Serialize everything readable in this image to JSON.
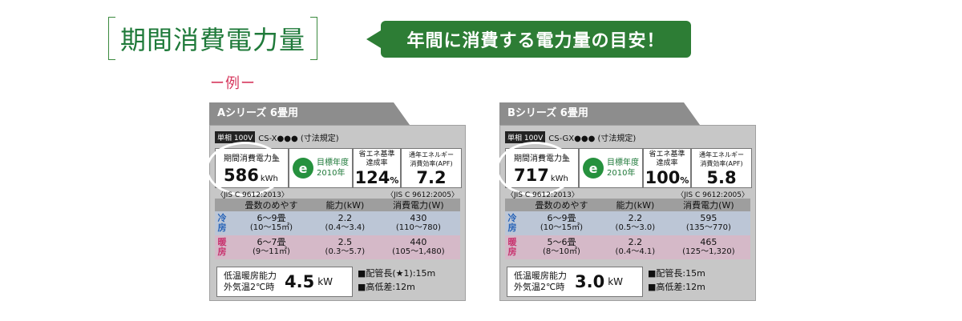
{
  "header": {
    "title": "期間消費電力量",
    "tag": "年間に消費する電力量の目安！",
    "example": "ー例ー"
  },
  "cards": [
    {
      "tab": "Aシリーズ 6畳用",
      "spec_phase": "単相",
      "spec_voltage": "100V",
      "spec_model": "CS-X●●● (寸法規定)",
      "energy_label": "期間消費電力量",
      "energy_value": "586",
      "energy_unit": "kWh",
      "target_year": "目標年度\n2010年",
      "rate_label": "省エネ基準\n達成率",
      "rate_value": "124",
      "rate_unit": "%",
      "apf_label": "通年エネルギー\n消費効率(APF)",
      "apf_value": "7.2",
      "jis_left": "〈JIS C 9612:2013〉",
      "jis_right": "〈JIS C 9612:2005〉",
      "headers": [
        "畳数のめやす",
        "能力(kW)",
        "消費電力(W)"
      ],
      "cool": {
        "mode": "冷房",
        "tatami": "6〜9畳",
        "tatami_sub": "(10〜15㎡)",
        "capacity": "2.2",
        "capacity_sub": "(0.4〜3.4)",
        "power": "430",
        "power_sub": "(110〜780)"
      },
      "heat": {
        "mode": "暖房",
        "tatami": "6〜7畳",
        "tatami_sub": "(9〜11㎡)",
        "capacity": "2.5",
        "capacity_sub": "(0.3〜5.7)",
        "power": "440",
        "power_sub": "(105〜1,480)"
      },
      "low_label": "低温暖房能力\n外気温2℃時",
      "low_value": "4.5",
      "low_unit": "kW",
      "pipe1": "■配管長(★1):15m",
      "pipe2": "■高低差:12m"
    },
    {
      "tab": "Bシリーズ 6畳用",
      "spec_phase": "単相",
      "spec_voltage": "100V",
      "spec_model": "CS-GX●●● (寸法規定)",
      "energy_label": "期間消費電力量",
      "energy_value": "717",
      "energy_unit": "kWh",
      "target_year": "目標年度\n2010年",
      "rate_label": "省エネ基準\n達成率",
      "rate_value": "100",
      "rate_unit": "%",
      "apf_label": "通年エネルギー\n消費効率(APF)",
      "apf_value": "5.8",
      "jis_left": "〈JIS C 9612:2013〉",
      "jis_right": "〈JIS C 9612:2005〉",
      "headers": [
        "畳数のめやす",
        "能力(kW)",
        "消費電力(W)"
      ],
      "cool": {
        "mode": "冷房",
        "tatami": "6〜9畳",
        "tatami_sub": "(10〜15㎡)",
        "capacity": "2.2",
        "capacity_sub": "(0.5〜3.0)",
        "power": "595",
        "power_sub": "(135〜770)"
      },
      "heat": {
        "mode": "暖房",
        "tatami": "5〜6畳",
        "tatami_sub": "(8〜10㎡)",
        "capacity": "2.2",
        "capacity_sub": "(0.4〜4.1)",
        "power": "465",
        "power_sub": "(125〜1,320)"
      },
      "low_label": "低温暖房能力\n外気温2℃時",
      "low_value": "3.0",
      "low_unit": "kW",
      "pipe1": "■配管長:15m",
      "pipe2": "■高低差:12m"
    }
  ]
}
